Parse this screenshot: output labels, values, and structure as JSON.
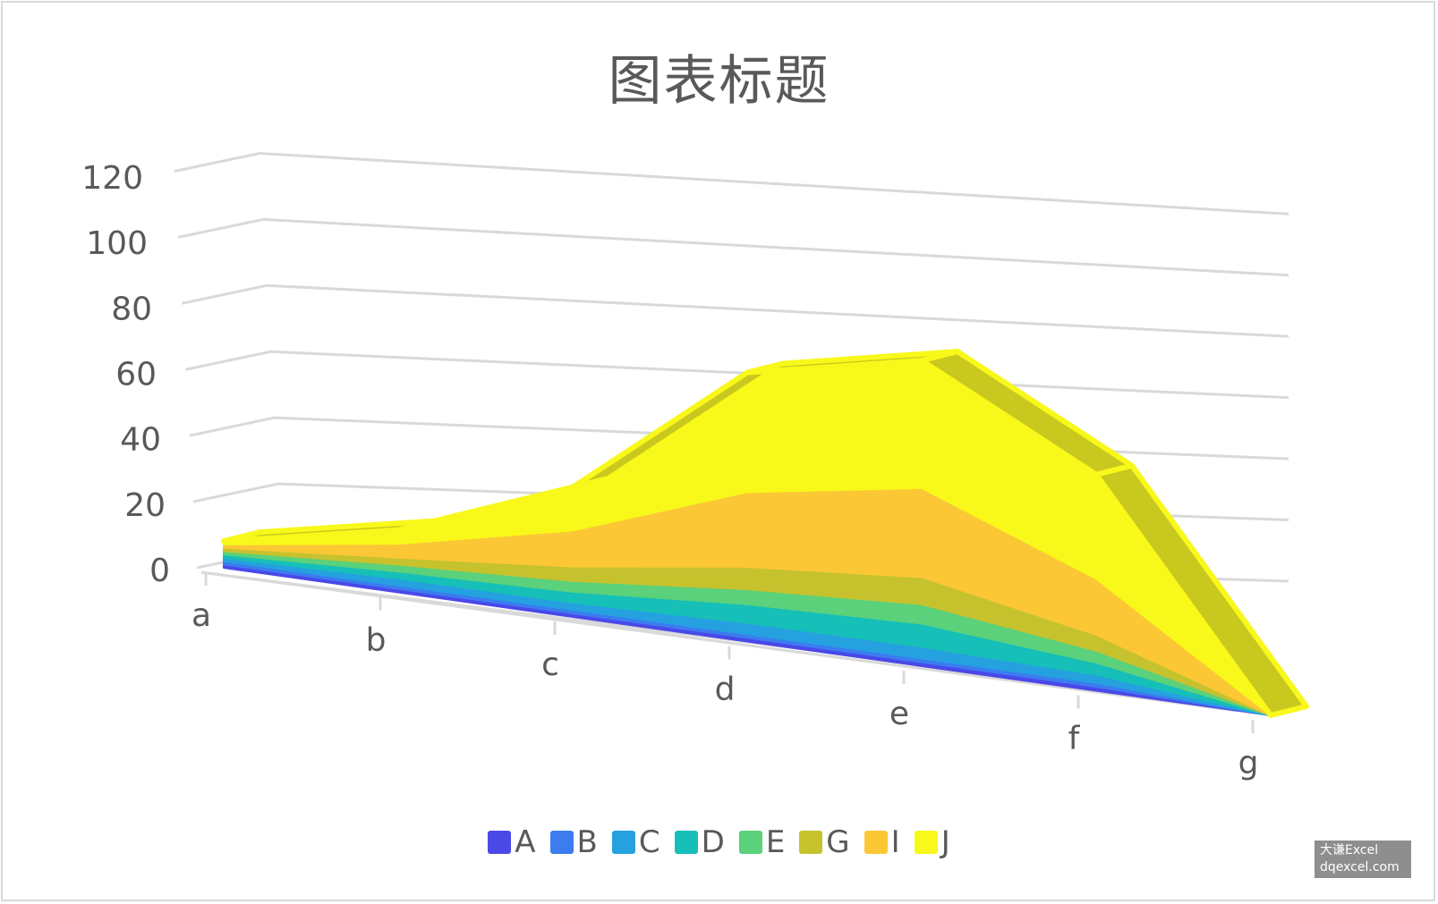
{
  "chart_data": {
    "type": "area",
    "title": "图表标题",
    "categories": [
      "a",
      "b",
      "c",
      "d",
      "e",
      "f",
      "g"
    ],
    "series": [
      {
        "name": "A",
        "values": [
          1,
          1,
          1,
          1,
          1,
          1,
          0
        ],
        "color": "#4a49e8"
      },
      {
        "name": "B",
        "values": [
          1,
          1,
          1,
          1,
          1,
          1,
          0
        ],
        "color": "#3b7cf0"
      },
      {
        "name": "C",
        "values": [
          1,
          2,
          2,
          3,
          3,
          2,
          0
        ],
        "color": "#25a1e0"
      },
      {
        "name": "D",
        "values": [
          1,
          2,
          3,
          5,
          6,
          3,
          0
        ],
        "color": "#16bfb8"
      },
      {
        "name": "E",
        "values": [
          1,
          2,
          3,
          4,
          5,
          3,
          0
        ],
        "color": "#5ad17a"
      },
      {
        "name": "G",
        "values": [
          1,
          2,
          4,
          6,
          7,
          4,
          0
        ],
        "color": "#c6c22e"
      },
      {
        "name": "I",
        "values": [
          1,
          4,
          10,
          20,
          23,
          14,
          0
        ],
        "color": "#fcc735"
      },
      {
        "name": "J",
        "values": [
          1,
          4,
          12,
          32,
          33,
          26,
          0
        ],
        "color": "#f8f81a"
      }
    ],
    "ylim": [
      0,
      120
    ],
    "yticks": [
      "0",
      "20",
      "40",
      "60",
      "80",
      "100",
      "120"
    ],
    "stacked": true,
    "grid": true,
    "legend_position": "bottom"
  },
  "watermark": {
    "line1": "大谦Excel",
    "line2": "dqexcel.com"
  }
}
